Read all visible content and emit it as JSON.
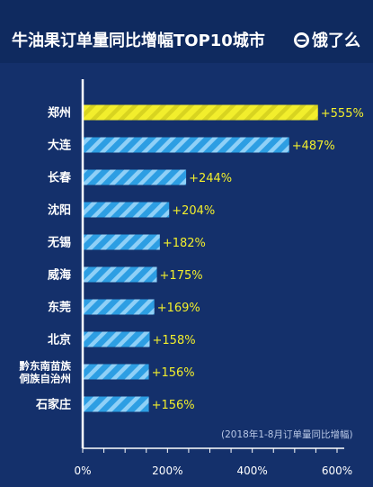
{
  "header": {
    "title": "牛油果订单量同比增幅TOP10城市",
    "brand": "饿了么"
  },
  "footnote": "(2018年1-8月订单量同比增幅)",
  "colors": {
    "background": "#14306b",
    "header_background": "#0f2a5f",
    "highlight_bar": "#f2ee2c",
    "highlight_stripe": "#d8d420",
    "bar": "#2d9ee3",
    "bar_stripe": "#8fd0f7",
    "value_label": "#f2ee2c",
    "axis": "#ffffff"
  },
  "chart_data": {
    "type": "bar",
    "orientation": "horizontal",
    "title": "牛油果订单量同比增幅TOP10城市",
    "categories": [
      "郑州",
      "大连",
      "长春",
      "沈阳",
      "无锡",
      "威海",
      "东莞",
      "北京",
      "黔东南苗族\n侗族自治州",
      "石家庄"
    ],
    "values": [
      555,
      487,
      244,
      204,
      182,
      175,
      169,
      158,
      156,
      156
    ],
    "data_labels": [
      "+555%",
      "+487%",
      "+244%",
      "+204%",
      "+182%",
      "+175%",
      "+169%",
      "+158%",
      "+156%",
      "+156%"
    ],
    "x_ticks": [
      "0%",
      "200%",
      "400%",
      "600%"
    ],
    "xlim": [
      0,
      600
    ],
    "highlight_index": 0,
    "grid": false,
    "legend": "none"
  }
}
